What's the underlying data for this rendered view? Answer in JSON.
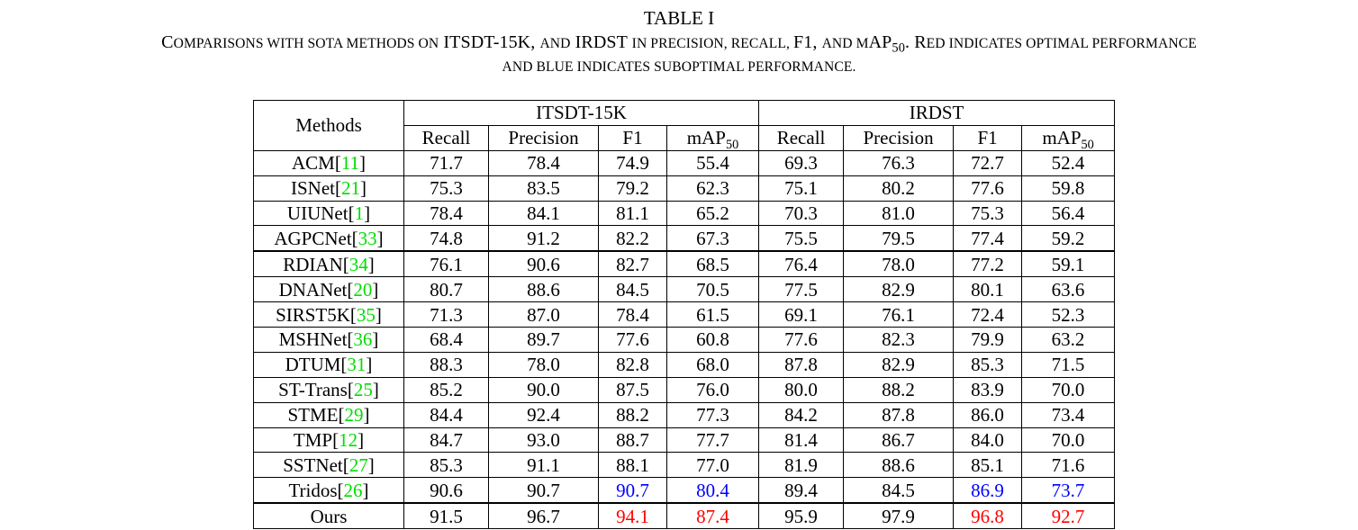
{
  "caption": {
    "label": "TABLE I",
    "line1_a": "C",
    "line1_b": "omparisons with sota methods on",
    "line1_c": " ITSDT-15K, ",
    "line1_d": "and",
    "line1_e": " IRDST ",
    "line1_f": "in precision, recall, ",
    "line1_g": "F1, ",
    "line1_h": "and m",
    "line1_i": "AP",
    "line1_j": "50",
    "line1_k": ". R",
    "line1_l": "ed indicates optimal performance",
    "line2": "and blue indicates suboptimal performance."
  },
  "table": {
    "methods_header": "Methods",
    "groups": [
      "ITSDT-15K",
      "IRDST"
    ],
    "columns": [
      "Recall",
      "Precision",
      "F1",
      "mAP",
      "Recall",
      "Precision",
      "F1",
      "mAP"
    ],
    "map_subscript": "50",
    "rows": [
      {
        "name": "ACM",
        "ref": "11",
        "values": [
          "71.7",
          "78.4",
          "74.9",
          "55.4",
          "69.3",
          "76.3",
          "72.7",
          "52.4"
        ]
      },
      {
        "name": "ISNet",
        "ref": "21",
        "values": [
          "75.3",
          "83.5",
          "79.2",
          "62.3",
          "75.1",
          "80.2",
          "77.6",
          "59.8"
        ]
      },
      {
        "name": "UIUNet",
        "ref": "1",
        "values": [
          "78.4",
          "84.1",
          "81.1",
          "65.2",
          "70.3",
          "81.0",
          "75.3",
          "56.4"
        ]
      },
      {
        "name": "AGPCNet",
        "ref": "33",
        "values": [
          "74.8",
          "91.2",
          "82.2",
          "67.3",
          "75.5",
          "79.5",
          "77.4",
          "59.2"
        ]
      },
      {
        "name": "RDIAN",
        "ref": "34",
        "values": [
          "76.1",
          "90.6",
          "82.7",
          "68.5",
          "76.4",
          "78.0",
          "77.2",
          "59.1"
        ]
      },
      {
        "name": "DNANet",
        "ref": "20",
        "values": [
          "80.7",
          "88.6",
          "84.5",
          "70.5",
          "77.5",
          "82.9",
          "80.1",
          "63.6"
        ]
      },
      {
        "name": "SIRST5K",
        "ref": "35",
        "values": [
          "71.3",
          "87.0",
          "78.4",
          "61.5",
          "69.1",
          "76.1",
          "72.4",
          "52.3"
        ]
      },
      {
        "name": "MSHNet",
        "ref": "36",
        "values": [
          "68.4",
          "89.7",
          "77.6",
          "60.8",
          "77.6",
          "82.3",
          "79.9",
          "63.2"
        ]
      },
      {
        "name": "DTUM",
        "ref": "31",
        "values": [
          "88.3",
          "78.0",
          "82.8",
          "68.0",
          "87.8",
          "82.9",
          "85.3",
          "71.5"
        ]
      },
      {
        "name": "ST-Trans",
        "ref": "25",
        "values": [
          "85.2",
          "90.0",
          "87.5",
          "76.0",
          "80.0",
          "88.2",
          "83.9",
          "70.0"
        ]
      },
      {
        "name": "STME",
        "ref": "29",
        "values": [
          "84.4",
          "92.4",
          "88.2",
          "77.3",
          "84.2",
          "87.8",
          "86.0",
          "73.4"
        ]
      },
      {
        "name": "TMP",
        "ref": "12",
        "values": [
          "84.7",
          "93.0",
          "88.7",
          "77.7",
          "81.4",
          "86.7",
          "84.0",
          "70.0"
        ]
      },
      {
        "name": "SSTNet",
        "ref": "27",
        "values": [
          "85.3",
          "91.1",
          "88.1",
          "77.0",
          "81.9",
          "88.6",
          "85.1",
          "71.6"
        ]
      },
      {
        "name": "Tridos",
        "ref": "26",
        "values": [
          "90.6",
          "90.7",
          "90.7",
          "80.4",
          "89.4",
          "84.5",
          "86.9",
          "73.7"
        ],
        "highlight": [
          null,
          null,
          "blue",
          "blue",
          null,
          null,
          "blue",
          "blue"
        ]
      },
      {
        "name": "Ours",
        "ref": "",
        "values": [
          "91.5",
          "96.7",
          "94.1",
          "87.4",
          "95.9",
          "97.9",
          "96.8",
          "92.7"
        ],
        "highlight": [
          null,
          null,
          "red",
          "red",
          null,
          null,
          "red",
          "red"
        ]
      }
    ],
    "colors": {
      "best": "#ff0000",
      "second": "#0000ff",
      "reference": "#00dd00"
    }
  }
}
